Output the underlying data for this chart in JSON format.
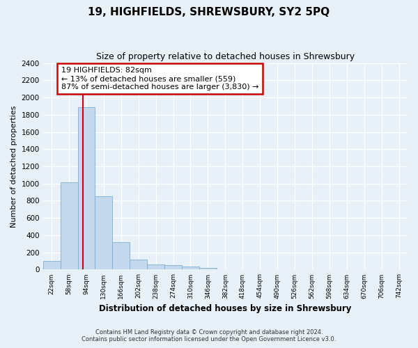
{
  "title": "19, HIGHFIELDS, SHREWSBURY, SY2 5PQ",
  "subtitle": "Size of property relative to detached houses in Shrewsbury",
  "xlabel": "Distribution of detached houses by size in Shrewsbury",
  "ylabel": "Number of detached properties",
  "bar_color": "#c5d9ee",
  "bar_edge_color": "#7aadd4",
  "bar_categories": [
    "22sqm",
    "58sqm",
    "94sqm",
    "130sqm",
    "166sqm",
    "202sqm",
    "238sqm",
    "274sqm",
    "310sqm",
    "346sqm",
    "382sqm",
    "418sqm",
    "454sqm",
    "490sqm",
    "526sqm",
    "562sqm",
    "598sqm",
    "634sqm",
    "670sqm",
    "706sqm",
    "742sqm"
  ],
  "bar_values": [
    100,
    1010,
    1890,
    855,
    315,
    120,
    58,
    50,
    38,
    22,
    0,
    0,
    0,
    0,
    0,
    0,
    0,
    0,
    0,
    0,
    0
  ],
  "marker_color": "#cc0000",
  "ylim": [
    0,
    2400
  ],
  "yticks": [
    0,
    200,
    400,
    600,
    800,
    1000,
    1200,
    1400,
    1600,
    1800,
    2000,
    2200,
    2400
  ],
  "annotation_line1": "19 HIGHFIELDS: 82sqm",
  "annotation_line2": "← 13% of detached houses are smaller (559)",
  "annotation_line3": "87% of semi-detached houses are larger (3,830) →",
  "annotation_box_color": "#ffffff",
  "annotation_box_edgecolor": "#cc0000",
  "footer_line1": "Contains HM Land Registry data © Crown copyright and database right 2024.",
  "footer_line2": "Contains public sector information licensed under the Open Government Licence v3.0.",
  "bg_color": "#e8f0f8",
  "grid_color": "#ffffff",
  "title_fontsize": 11,
  "subtitle_fontsize": 9
}
